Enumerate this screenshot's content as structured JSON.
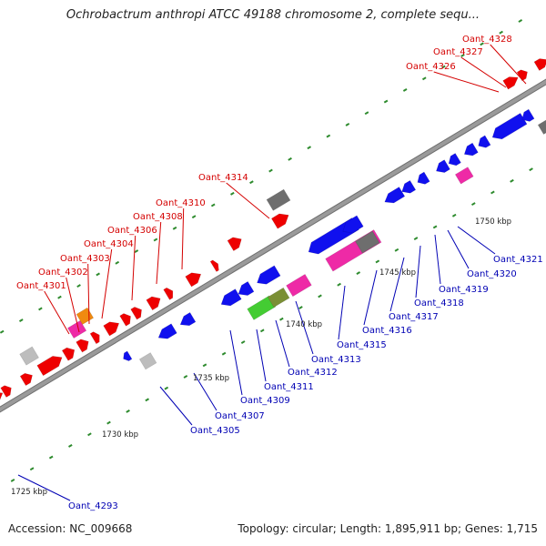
{
  "title": "Ochrobactrum anthropi ATCC 49188 chromosome 2, complete sequ...",
  "accession_text": "Accession: NC_009668",
  "summary_text": "Topology: circular; Length: 1,895,911 bp; Genes: 1,715",
  "colors": {
    "backbone": "#9a9a9a",
    "tick": "#2e8b2e",
    "forward_label": "#d40000",
    "reverse_label": "#0000b4",
    "red": "#ee0000",
    "blue": "#1010ee",
    "pink": "#ee2aa6",
    "gray": "#bdbdbd",
    "darkgray": "#6e6e6e",
    "green": "#44cc33",
    "olive": "#7a8f35",
    "orange": "#f08a10"
  },
  "scale_labels": [
    "1725 kbp",
    "1730 kbp",
    "1735 kbp",
    "1740 kbp",
    "1745 kbp",
    "1750 kbp"
  ],
  "forward_labels": [
    "Oant_4301",
    "Oant_4302",
    "Oant_4303",
    "Oant_4304",
    "Oant_4306",
    "Oant_4308",
    "Oant_4310",
    "Oant_4314",
    "Oant_4326",
    "Oant_4327",
    "Oant_4328"
  ],
  "reverse_labels": [
    "Oant_4293",
    "Oant_4305",
    "Oant_4307",
    "Oant_4309",
    "Oant_4311",
    "Oant_4312",
    "Oant_4313",
    "Oant_4315",
    "Oant_4316",
    "Oant_4317",
    "Oant_4318",
    "Oant_4319",
    "Oant_4320",
    "Oant_4321"
  ]
}
